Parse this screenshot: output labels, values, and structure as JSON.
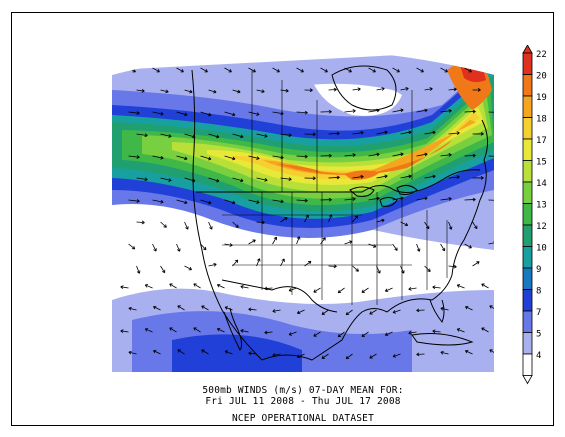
{
  "caption": {
    "line1": "500mb WINDS (m/s)    07-DAY MEAN FOR:",
    "line2": "Fri JUL 11 2008 - Thu JUL 17 2008",
    "line3": "NCEP OPERATIONAL DATASET"
  },
  "colorbar": {
    "labels": [
      "22",
      "20",
      "19",
      "18",
      "17",
      "15",
      "14",
      "13",
      "12",
      "10",
      "9",
      "8",
      "7",
      "5",
      "4"
    ],
    "colors": [
      "#e0301e",
      "#f07818",
      "#f5a520",
      "#f6d030",
      "#e8e838",
      "#b8e038",
      "#78d040",
      "#40b848",
      "#20a070",
      "#18a0a0",
      "#1878c0",
      "#2040d8",
      "#6878e8",
      "#a8b0f0",
      "#ffffff"
    ]
  },
  "map": {
    "region": "North America",
    "field": "500mb wind speed with direction vectors"
  }
}
